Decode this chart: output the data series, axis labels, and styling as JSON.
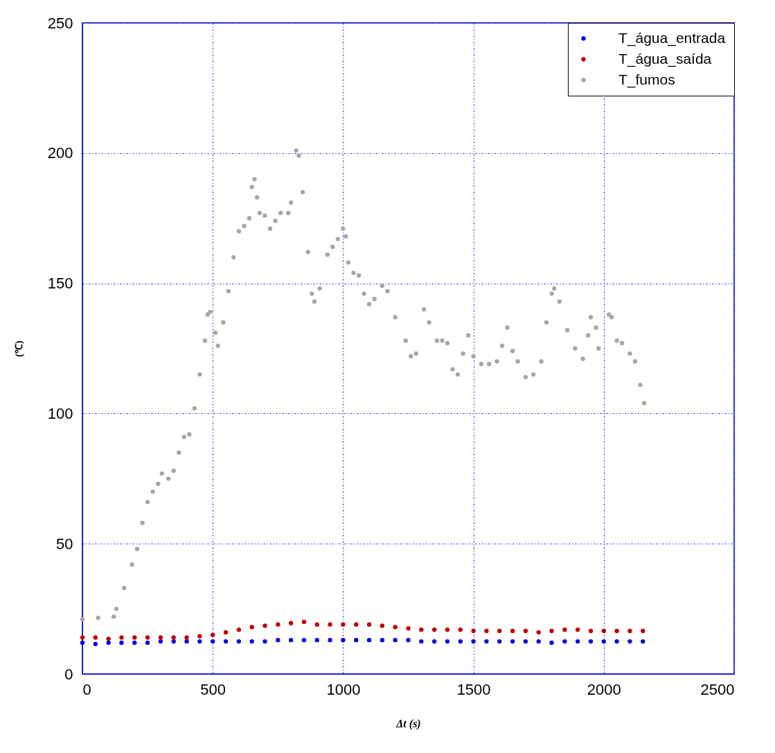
{
  "chart_data": {
    "type": "scatter",
    "xlabel": "Δt (s)",
    "ylabel": "(℃)",
    "xlim": [
      0,
      2500
    ],
    "ylim": [
      0,
      250
    ],
    "xticks": [
      0,
      500,
      1000,
      1500,
      2000,
      2500
    ],
    "yticks": [
      0,
      50,
      100,
      150,
      200,
      250
    ],
    "grid": true,
    "legend": "top right",
    "marker": "circle",
    "series": [
      {
        "name": "T_água_entrada",
        "color": "#0000e0",
        "x": [
          0,
          50,
          100,
          150,
          200,
          250,
          300,
          350,
          400,
          450,
          500,
          550,
          600,
          650,
          700,
          750,
          800,
          850,
          900,
          950,
          1000,
          1050,
          1100,
          1150,
          1200,
          1250,
          1300,
          1350,
          1400,
          1450,
          1500,
          1550,
          1600,
          1650,
          1700,
          1750,
          1800,
          1850,
          1900,
          1950,
          2000,
          2050,
          2100,
          2150
        ],
        "values": [
          12,
          11.5,
          12,
          12,
          12,
          12,
          12.5,
          12.5,
          12.5,
          12.5,
          12.5,
          12.5,
          12.5,
          12.5,
          12.5,
          13,
          13,
          13,
          13,
          13,
          13,
          13,
          13,
          13,
          13,
          13,
          12.5,
          12.5,
          12.5,
          12.5,
          12.5,
          12.5,
          12.5,
          12.5,
          12.5,
          12.5,
          12,
          12.5,
          12.5,
          12.5,
          12.5,
          12.5,
          12.5,
          12.5
        ]
      },
      {
        "name": "T_água_saída",
        "color": "#c00000",
        "x": [
          0,
          50,
          100,
          150,
          200,
          250,
          300,
          350,
          400,
          450,
          500,
          550,
          600,
          650,
          700,
          750,
          800,
          850,
          900,
          950,
          1000,
          1050,
          1100,
          1150,
          1200,
          1250,
          1300,
          1350,
          1400,
          1450,
          1500,
          1550,
          1600,
          1650,
          1700,
          1750,
          1800,
          1850,
          1900,
          1950,
          2000,
          2050,
          2100,
          2150
        ],
        "values": [
          14,
          14,
          13.5,
          14,
          14,
          14,
          14,
          14,
          14,
          14.5,
          15,
          16,
          17,
          18,
          18.5,
          19,
          19.5,
          20,
          19,
          19,
          19,
          19,
          19,
          18.5,
          18,
          17.5,
          17,
          17,
          17,
          17,
          16.5,
          16.5,
          16.5,
          16.5,
          16.5,
          16,
          16.5,
          17,
          17,
          16.5,
          16.5,
          16.5,
          16.5,
          16.5
        ]
      },
      {
        "name": "T_fumos",
        "color": "#a6a6a6",
        "x": [
          0,
          60,
          120,
          130,
          160,
          190,
          210,
          230,
          250,
          270,
          290,
          305,
          330,
          350,
          370,
          390,
          410,
          430,
          450,
          470,
          480,
          490,
          510,
          520,
          540,
          560,
          580,
          600,
          620,
          640,
          650,
          660,
          670,
          680,
          700,
          720,
          740,
          760,
          790,
          800,
          820,
          830,
          845,
          865,
          880,
          890,
          910,
          940,
          960,
          980,
          1000,
          1010,
          1020,
          1040,
          1060,
          1080,
          1100,
          1120,
          1150,
          1170,
          1200,
          1240,
          1260,
          1280,
          1310,
          1330,
          1360,
          1380,
          1400,
          1420,
          1440,
          1460,
          1480,
          1500,
          1530,
          1560,
          1590,
          1610,
          1630,
          1650,
          1670,
          1700,
          1730,
          1760,
          1780,
          1800,
          1810,
          1830,
          1860,
          1890,
          1920,
          1940,
          1950,
          1970,
          1980,
          2020,
          2030,
          2050,
          2070,
          2100,
          2120,
          2140,
          2155
        ],
        "values": [
          21,
          21.5,
          22,
          25,
          33,
          42,
          48,
          58,
          66,
          70,
          73,
          77,
          75,
          78,
          85,
          91,
          92,
          102,
          115,
          128,
          138,
          139,
          131,
          126,
          135,
          147,
          160,
          170,
          172,
          175,
          187,
          190,
          183,
          177,
          176,
          171,
          174,
          177,
          177,
          181,
          201,
          199,
          185,
          162,
          146,
          143,
          148,
          161,
          164,
          167,
          171,
          168,
          158,
          154,
          153,
          146,
          142,
          144,
          149,
          147,
          137,
          128,
          122,
          123,
          140,
          135,
          128,
          128,
          127,
          117,
          115,
          123,
          130,
          122,
          119,
          119,
          120,
          126,
          133,
          124,
          120,
          114,
          115,
          120,
          135,
          146,
          148,
          143,
          132,
          125,
          121,
          130,
          137,
          133,
          125,
          138,
          137,
          128,
          127,
          123,
          120,
          111,
          104
        ]
      }
    ]
  }
}
